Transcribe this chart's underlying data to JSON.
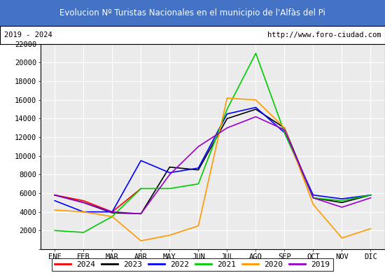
{
  "title": "Evolucion Nº Turistas Nacionales en el municipio de l'Alfàs del Pi",
  "subtitle_left": "2019 - 2024",
  "subtitle_right": "http://www.foro-ciudad.com",
  "title_bg_color": "#4472c4",
  "title_fg_color": "#ffffff",
  "months": [
    "ENE",
    "FEB",
    "MAR",
    "ABR",
    "MAY",
    "JUN",
    "JUL",
    "AGO",
    "SEP",
    "OCT",
    "NOV",
    "DIC"
  ],
  "ylim": [
    0,
    22000
  ],
  "yticks": [
    0,
    2000,
    4000,
    6000,
    8000,
    10000,
    12000,
    14000,
    16000,
    18000,
    20000,
    22000
  ],
  "grid_color": "#d0d0d0",
  "series": {
    "2024": {
      "color": "#ff0000",
      "data": [
        5800,
        5200,
        4000,
        6500,
        null,
        null,
        null,
        null,
        null,
        null,
        null,
        null
      ]
    },
    "2023": {
      "color": "#000000",
      "data": [
        5800,
        5000,
        3900,
        3800,
        8800,
        8500,
        14000,
        15000,
        13000,
        5500,
        5000,
        5800
      ]
    },
    "2022": {
      "color": "#0000ff",
      "data": [
        5200,
        4000,
        4000,
        9500,
        8200,
        8700,
        14500,
        15200,
        12500,
        5800,
        5400,
        5800
      ]
    },
    "2021": {
      "color": "#00cc00",
      "data": [
        2000,
        1800,
        3500,
        6500,
        6500,
        7000,
        15000,
        21000,
        12500,
        5500,
        5200,
        5800
      ]
    },
    "2020": {
      "color": "#ff9900",
      "data": [
        4200,
        4000,
        3500,
        900,
        1500,
        2500,
        16200,
        16000,
        13000,
        4800,
        1200,
        2200
      ]
    },
    "2019": {
      "color": "#9900cc",
      "data": [
        5800,
        5000,
        4000,
        3800,
        8000,
        11000,
        13000,
        14200,
        12800,
        5500,
        4500,
        5500
      ]
    }
  },
  "legend_order": [
    "2024",
    "2023",
    "2022",
    "2021",
    "2020",
    "2019"
  ]
}
